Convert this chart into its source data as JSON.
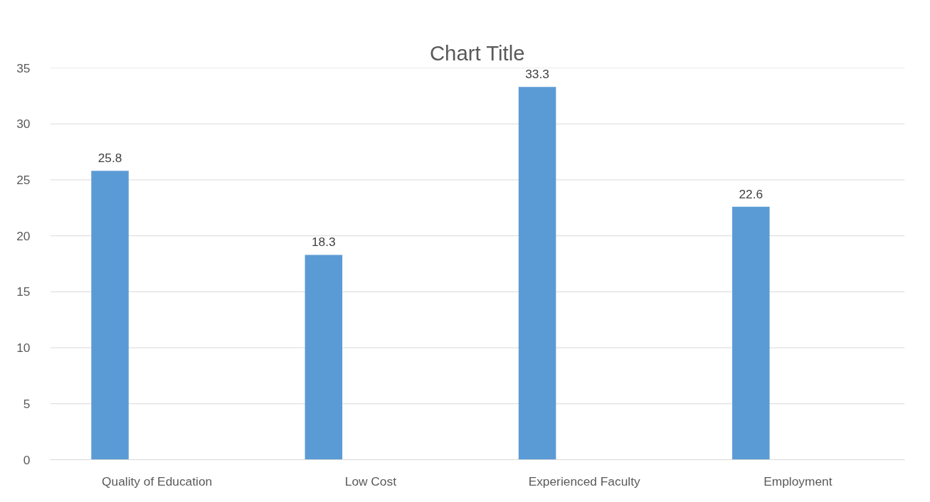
{
  "chart_data": {
    "type": "bar",
    "title": "Chart Title",
    "categories": [
      "Quality of Education",
      "Low Cost",
      "Experienced Faculty",
      "Employment"
    ],
    "values": [
      25.8,
      18.3,
      33.3,
      22.6
    ],
    "color": "#5b9bd5",
    "ylim": [
      0,
      35
    ],
    "yticks": [
      0,
      5,
      10,
      15,
      20,
      25,
      30,
      35
    ],
    "grid": "y",
    "data_labels": true
  }
}
